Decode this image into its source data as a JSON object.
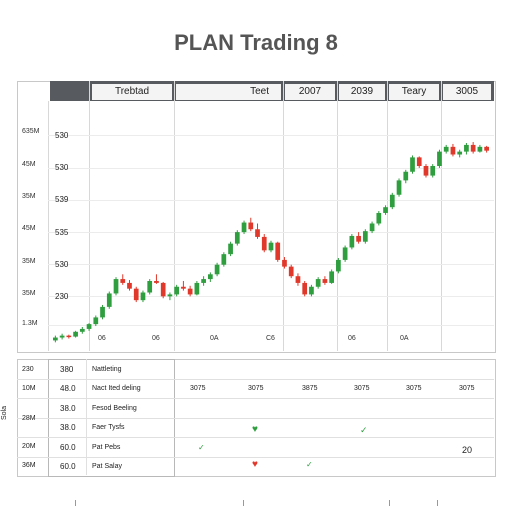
{
  "title": "PLAN Trading 8",
  "header": {
    "cells": [
      "Trebtad",
      "Teet",
      "2007",
      "2039",
      "Teary",
      "3005"
    ]
  },
  "y_axis_outer": [
    "635M",
    "45M",
    "35M",
    "45M",
    "35M",
    "35M",
    "1.3M"
  ],
  "y_axis_inner": [
    "530",
    "530",
    "539",
    "535",
    "530",
    "230"
  ],
  "x_axis_labels": [
    "06",
    "06",
    "0A",
    "C6",
    "06",
    "0A"
  ],
  "lower": {
    "side_labels": [
      "230",
      "10M",
      "28M",
      "20M",
      "36M"
    ],
    "rotated_label": "Sola",
    "values": [
      "380",
      "48.0",
      "38.0",
      "38.0",
      "60.0",
      "60.0"
    ],
    "names": [
      "Nattleting",
      "Nact Ited deling",
      "Fesod Beeling",
      "Faer Tysfs",
      "Pat Pebs",
      "Pat Salay"
    ],
    "col_headers": [
      "3075",
      "3075",
      "3875",
      "3075",
      "3075",
      "3075"
    ],
    "right_value": "20"
  },
  "icon_colors": {
    "heart_green": "#2e9e3e",
    "heart_red": "#e0392b",
    "check": "#2e9e3e"
  },
  "chart_data": {
    "type": "candlestick",
    "ohlc": [
      [
        2.0,
        2.25,
        1.9,
        2.15
      ],
      [
        2.15,
        2.35,
        2.05,
        2.25
      ],
      [
        2.25,
        2.3,
        2.1,
        2.2
      ],
      [
        2.2,
        2.5,
        2.15,
        2.45
      ],
      [
        2.45,
        2.7,
        2.35,
        2.6
      ],
      [
        2.6,
        2.9,
        2.5,
        2.85
      ],
      [
        2.85,
        3.3,
        2.75,
        3.2
      ],
      [
        3.2,
        3.85,
        3.1,
        3.75
      ],
      [
        3.75,
        4.55,
        3.65,
        4.45
      ],
      [
        4.45,
        5.3,
        4.35,
        5.2
      ],
      [
        5.2,
        5.45,
        4.9,
        5.0
      ],
      [
        5.0,
        5.15,
        4.6,
        4.7
      ],
      [
        4.7,
        4.8,
        4.0,
        4.1
      ],
      [
        4.1,
        4.6,
        4.0,
        4.5
      ],
      [
        4.5,
        5.2,
        4.4,
        5.1
      ],
      [
        5.1,
        5.45,
        4.95,
        5.0
      ],
      [
        5.0,
        5.05,
        4.2,
        4.3
      ],
      [
        4.3,
        4.5,
        4.1,
        4.4
      ],
      [
        4.4,
        4.9,
        4.3,
        4.8
      ],
      [
        4.8,
        5.1,
        4.6,
        4.7
      ],
      [
        4.7,
        4.85,
        4.3,
        4.4
      ],
      [
        4.4,
        5.1,
        4.35,
        5.0
      ],
      [
        5.0,
        5.35,
        4.85,
        5.2
      ],
      [
        5.2,
        5.55,
        5.05,
        5.45
      ],
      [
        5.45,
        6.05,
        5.35,
        5.95
      ],
      [
        5.95,
        6.6,
        5.85,
        6.5
      ],
      [
        6.5,
        7.15,
        6.4,
        7.05
      ],
      [
        7.05,
        7.75,
        6.95,
        7.65
      ],
      [
        7.65,
        8.25,
        7.55,
        8.15
      ],
      [
        8.15,
        8.4,
        7.7,
        7.8
      ],
      [
        7.8,
        8.1,
        7.3,
        7.4
      ],
      [
        7.4,
        7.55,
        6.6,
        6.7
      ],
      [
        6.7,
        7.2,
        6.6,
        7.1
      ],
      [
        7.1,
        7.15,
        6.1,
        6.2
      ],
      [
        6.2,
        6.35,
        5.75,
        5.85
      ],
      [
        5.85,
        5.95,
        5.25,
        5.35
      ],
      [
        5.35,
        5.5,
        4.85,
        5.0
      ],
      [
        5.0,
        5.1,
        4.3,
        4.4
      ],
      [
        4.4,
        4.9,
        4.3,
        4.8
      ],
      [
        4.8,
        5.3,
        4.7,
        5.2
      ],
      [
        5.2,
        5.35,
        4.9,
        5.0
      ],
      [
        5.0,
        5.7,
        4.95,
        5.6
      ],
      [
        5.6,
        6.3,
        5.5,
        6.2
      ],
      [
        6.2,
        6.95,
        6.1,
        6.85
      ],
      [
        6.85,
        7.55,
        6.75,
        7.45
      ],
      [
        7.45,
        7.65,
        7.05,
        7.15
      ],
      [
        7.15,
        7.8,
        7.05,
        7.7
      ],
      [
        7.7,
        8.2,
        7.6,
        8.1
      ],
      [
        8.1,
        8.75,
        8.0,
        8.65
      ],
      [
        8.65,
        9.05,
        8.55,
        8.95
      ],
      [
        8.95,
        9.7,
        8.85,
        9.6
      ],
      [
        9.6,
        10.45,
        9.5,
        10.35
      ],
      [
        10.35,
        10.9,
        10.2,
        10.8
      ],
      [
        10.8,
        11.65,
        10.7,
        11.55
      ],
      [
        11.55,
        11.6,
        11.0,
        11.1
      ],
      [
        11.1,
        11.2,
        10.5,
        10.6
      ],
      [
        10.6,
        11.2,
        10.5,
        11.1
      ],
      [
        11.1,
        11.95,
        11.0,
        11.85
      ],
      [
        11.85,
        12.2,
        11.75,
        12.1
      ],
      [
        12.1,
        12.25,
        11.6,
        11.7
      ],
      [
        11.7,
        11.95,
        11.55,
        11.85
      ],
      [
        11.85,
        12.3,
        11.7,
        12.2
      ],
      [
        12.2,
        12.35,
        11.75,
        11.85
      ],
      [
        11.85,
        12.2,
        11.8,
        12.1
      ],
      [
        12.1,
        12.15,
        11.8,
        11.9
      ]
    ],
    "up_color": "#2e9e3e",
    "down_color": "#e0392b",
    "ylim": [
      1.5,
      13.5
    ],
    "grid": true
  }
}
